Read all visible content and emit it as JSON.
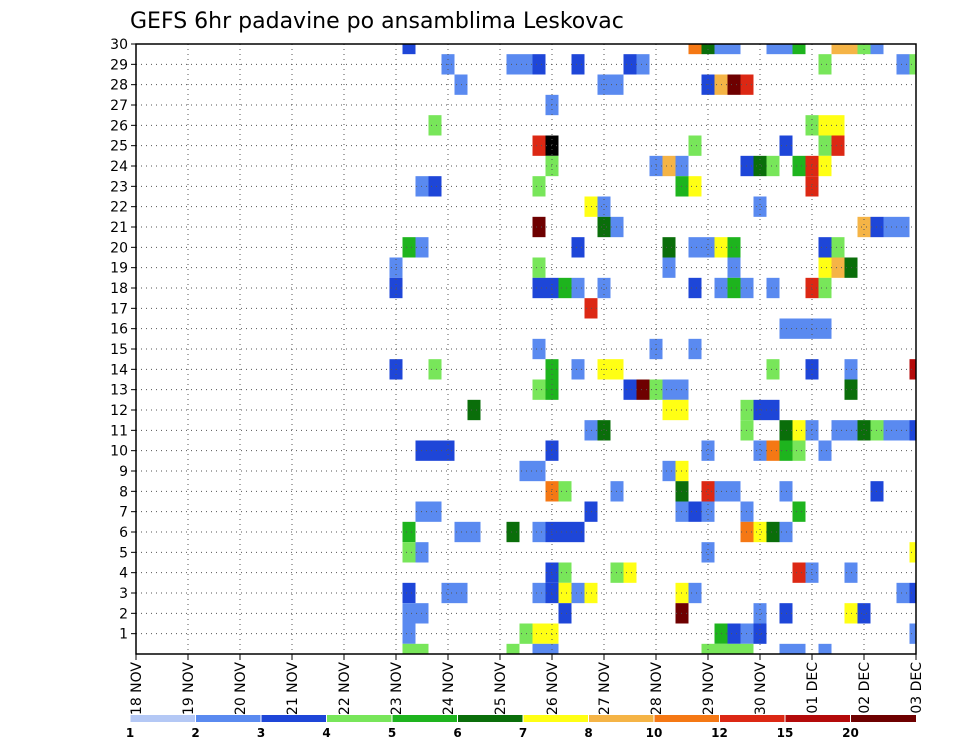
{
  "chart_data": {
    "type": "heatmap",
    "title": "GEFS 6hr padavine po ansamblima Leskovac",
    "x_tick_labels": [
      "18 NOV",
      "19 NOV",
      "20 NOV",
      "21 NOV",
      "22 NOV",
      "23 NOV",
      "24 NOV",
      "25 NOV",
      "26 NOV",
      "27 NOV",
      "28 NOV",
      "29 NOV",
      "30 NOV",
      "01 DEC",
      "02 DEC",
      "03 DEC"
    ],
    "y_tick_labels": [
      "1",
      "2",
      "3",
      "4",
      "5",
      "6",
      "7",
      "8",
      "9",
      "10",
      "11",
      "12",
      "13",
      "14",
      "15",
      "16",
      "17",
      "18",
      "19",
      "20",
      "21",
      "22",
      "23",
      "24",
      "25",
      "26",
      "27",
      "28",
      "29",
      "30"
    ],
    "xlim": [
      0,
      60
    ],
    "ylim": [
      0,
      30
    ],
    "grid": true,
    "colorbar": {
      "labels": [
        "1",
        "2",
        "3",
        "4",
        "5",
        "6",
        "7",
        "8",
        "10",
        "12",
        "15",
        "20"
      ],
      "colors": [
        "#b4c8f5",
        "#5a8af0",
        "#1e46d8",
        "#78e65a",
        "#1eb41e",
        "#0a6e0a",
        "#ffff14",
        "#f5b446",
        "#f57814",
        "#dc2814",
        "#b40a0a",
        "#6e0000"
      ]
    },
    "cells": [
      [
        21,
        30,
        2
      ],
      [
        43,
        30,
        8
      ],
      [
        44,
        30,
        5
      ],
      [
        45,
        30,
        1
      ],
      [
        46,
        30,
        1
      ],
      [
        49,
        30,
        1
      ],
      [
        50,
        30,
        1
      ],
      [
        51,
        30,
        4
      ],
      [
        54,
        30,
        7
      ],
      [
        55,
        30,
        7
      ],
      [
        56,
        30,
        3
      ],
      [
        57,
        30,
        1
      ],
      [
        24,
        29,
        1
      ],
      [
        29,
        29,
        1
      ],
      [
        30,
        29,
        1
      ],
      [
        31,
        29,
        2
      ],
      [
        34,
        29,
        2
      ],
      [
        38,
        29,
        2
      ],
      [
        39,
        29,
        1
      ],
      [
        53,
        29,
        3
      ],
      [
        59,
        29,
        1
      ],
      [
        60,
        29,
        3
      ],
      [
        25,
        28,
        1
      ],
      [
        36,
        28,
        1
      ],
      [
        37,
        28,
        1
      ],
      [
        44,
        28,
        2
      ],
      [
        45,
        28,
        7
      ],
      [
        46,
        28,
        11
      ],
      [
        47,
        28,
        9
      ],
      [
        32,
        27,
        1
      ],
      [
        23,
        26,
        3
      ],
      [
        52,
        26,
        3
      ],
      [
        53,
        26,
        6
      ],
      [
        54,
        26,
        6
      ],
      [
        31,
        25,
        9
      ],
      [
        32,
        25,
        12
      ],
      [
        43,
        25,
        3
      ],
      [
        50,
        25,
        2
      ],
      [
        53,
        25,
        3
      ],
      [
        54,
        25,
        9
      ],
      [
        32,
        24,
        3
      ],
      [
        40,
        24,
        1
      ],
      [
        41,
        24,
        7
      ],
      [
        42,
        24,
        1
      ],
      [
        47,
        24,
        2
      ],
      [
        48,
        24,
        5
      ],
      [
        49,
        24,
        3
      ],
      [
        51,
        24,
        4
      ],
      [
        52,
        24,
        9
      ],
      [
        53,
        24,
        6
      ],
      [
        22,
        23,
        1
      ],
      [
        23,
        23,
        2
      ],
      [
        31,
        23,
        3
      ],
      [
        42,
        23,
        4
      ],
      [
        43,
        23,
        6
      ],
      [
        52,
        23,
        9
      ],
      [
        35,
        22,
        6
      ],
      [
        36,
        22,
        1
      ],
      [
        48,
        22,
        1
      ],
      [
        31,
        21,
        11
      ],
      [
        36,
        21,
        5
      ],
      [
        37,
        21,
        1
      ],
      [
        56,
        21,
        7
      ],
      [
        57,
        21,
        2
      ],
      [
        58,
        21,
        1
      ],
      [
        59,
        21,
        1
      ],
      [
        21,
        20,
        4
      ],
      [
        22,
        20,
        1
      ],
      [
        34,
        20,
        2
      ],
      [
        41,
        20,
        5
      ],
      [
        43,
        20,
        1
      ],
      [
        44,
        20,
        1
      ],
      [
        45,
        20,
        6
      ],
      [
        46,
        20,
        4
      ],
      [
        53,
        20,
        2
      ],
      [
        54,
        20,
        3
      ],
      [
        20,
        19,
        1
      ],
      [
        31,
        19,
        3
      ],
      [
        41,
        19,
        1
      ],
      [
        46,
        19,
        1
      ],
      [
        53,
        19,
        6
      ],
      [
        54,
        19,
        7
      ],
      [
        55,
        19,
        5
      ],
      [
        20,
        18,
        2
      ],
      [
        31,
        18,
        2
      ],
      [
        32,
        18,
        2
      ],
      [
        33,
        18,
        4
      ],
      [
        34,
        18,
        1
      ],
      [
        36,
        18,
        1
      ],
      [
        43,
        18,
        2
      ],
      [
        45,
        18,
        1
      ],
      [
        46,
        18,
        4
      ],
      [
        47,
        18,
        1
      ],
      [
        49,
        18,
        1
      ],
      [
        52,
        18,
        9
      ],
      [
        53,
        18,
        3
      ],
      [
        35,
        17,
        9
      ],
      [
        50,
        16,
        1
      ],
      [
        51,
        16,
        1
      ],
      [
        52,
        16,
        1
      ],
      [
        53,
        16,
        1
      ],
      [
        31,
        15,
        1
      ],
      [
        40,
        15,
        1
      ],
      [
        43,
        15,
        1
      ],
      [
        20,
        14,
        2
      ],
      [
        23,
        14,
        3
      ],
      [
        32,
        14,
        4
      ],
      [
        34,
        14,
        1
      ],
      [
        36,
        14,
        6
      ],
      [
        37,
        14,
        6
      ],
      [
        49,
        14,
        3
      ],
      [
        52,
        14,
        2
      ],
      [
        55,
        14,
        1
      ],
      [
        60,
        14,
        10
      ],
      [
        31,
        13,
        3
      ],
      [
        32,
        13,
        4
      ],
      [
        38,
        13,
        2
      ],
      [
        39,
        13,
        11
      ],
      [
        40,
        13,
        3
      ],
      [
        41,
        13,
        1
      ],
      [
        42,
        13,
        1
      ],
      [
        55,
        13,
        5
      ],
      [
        26,
        12,
        5
      ],
      [
        41,
        12,
        6
      ],
      [
        42,
        12,
        6
      ],
      [
        47,
        12,
        3
      ],
      [
        48,
        12,
        2
      ],
      [
        49,
        12,
        2
      ],
      [
        35,
        11,
        1
      ],
      [
        36,
        11,
        5
      ],
      [
        47,
        11,
        3
      ],
      [
        50,
        11,
        5
      ],
      [
        51,
        11,
        6
      ],
      [
        52,
        11,
        1
      ],
      [
        54,
        11,
        1
      ],
      [
        55,
        11,
        1
      ],
      [
        56,
        11,
        5
      ],
      [
        57,
        11,
        3
      ],
      [
        58,
        11,
        1
      ],
      [
        59,
        11,
        1
      ],
      [
        60,
        11,
        2
      ],
      [
        22,
        10,
        2
      ],
      [
        23,
        10,
        2
      ],
      [
        24,
        10,
        2
      ],
      [
        32,
        10,
        2
      ],
      [
        44,
        10,
        1
      ],
      [
        48,
        10,
        1
      ],
      [
        49,
        10,
        8
      ],
      [
        50,
        10,
        4
      ],
      [
        51,
        10,
        3
      ],
      [
        53,
        10,
        1
      ],
      [
        30,
        9,
        1
      ],
      [
        31,
        9,
        1
      ],
      [
        41,
        9,
        1
      ],
      [
        42,
        9,
        6
      ],
      [
        32,
        8,
        8
      ],
      [
        33,
        8,
        3
      ],
      [
        37,
        8,
        1
      ],
      [
        42,
        8,
        5
      ],
      [
        44,
        8,
        9
      ],
      [
        45,
        8,
        1
      ],
      [
        46,
        8,
        1
      ],
      [
        50,
        8,
        1
      ],
      [
        57,
        8,
        2
      ],
      [
        22,
        7,
        1
      ],
      [
        23,
        7,
        1
      ],
      [
        35,
        7,
        2
      ],
      [
        42,
        7,
        1
      ],
      [
        43,
        7,
        2
      ],
      [
        44,
        7,
        1
      ],
      [
        47,
        7,
        1
      ],
      [
        51,
        7,
        4
      ],
      [
        21,
        6,
        4
      ],
      [
        25,
        6,
        1
      ],
      [
        26,
        6,
        1
      ],
      [
        29,
        6,
        5
      ],
      [
        31,
        6,
        1
      ],
      [
        32,
        6,
        2
      ],
      [
        33,
        6,
        2
      ],
      [
        34,
        6,
        2
      ],
      [
        47,
        6,
        8
      ],
      [
        48,
        6,
        6
      ],
      [
        49,
        6,
        5
      ],
      [
        50,
        6,
        1
      ],
      [
        21,
        5,
        3
      ],
      [
        22,
        5,
        1
      ],
      [
        44,
        5,
        1
      ],
      [
        60,
        5,
        6
      ],
      [
        32,
        4,
        2
      ],
      [
        33,
        4,
        3
      ],
      [
        37,
        4,
        3
      ],
      [
        38,
        4,
        6
      ],
      [
        51,
        4,
        9
      ],
      [
        52,
        4,
        1
      ],
      [
        55,
        4,
        1
      ],
      [
        21,
        3,
        2
      ],
      [
        24,
        3,
        1
      ],
      [
        25,
        3,
        1
      ],
      [
        31,
        3,
        1
      ],
      [
        32,
        3,
        2
      ],
      [
        33,
        3,
        6
      ],
      [
        34,
        3,
        1
      ],
      [
        35,
        3,
        6
      ],
      [
        42,
        3,
        6
      ],
      [
        43,
        3,
        1
      ],
      [
        59,
        3,
        1
      ],
      [
        60,
        3,
        2
      ],
      [
        21,
        2,
        1
      ],
      [
        22,
        2,
        1
      ],
      [
        33,
        2,
        2
      ],
      [
        42,
        2,
        11
      ],
      [
        48,
        2,
        1
      ],
      [
        50,
        2,
        2
      ],
      [
        55,
        2,
        6
      ],
      [
        56,
        2,
        2
      ],
      [
        21,
        1,
        1
      ],
      [
        30,
        1,
        3
      ],
      [
        31,
        1,
        6
      ],
      [
        32,
        1,
        6
      ],
      [
        45,
        1,
        4
      ],
      [
        46,
        1,
        2
      ],
      [
        47,
        1,
        1
      ],
      [
        48,
        1,
        2
      ],
      [
        60,
        1,
        1
      ],
      [
        21,
        0,
        3
      ],
      [
        22,
        0,
        3
      ],
      [
        29,
        0,
        3
      ],
      [
        31,
        0,
        1
      ],
      [
        32,
        0,
        1
      ],
      [
        44,
        0,
        3
      ],
      [
        45,
        0,
        3
      ],
      [
        46,
        0,
        3
      ],
      [
        47,
        0,
        3
      ],
      [
        50,
        0,
        1
      ],
      [
        51,
        0,
        1
      ],
      [
        53,
        0,
        1
      ]
    ]
  }
}
